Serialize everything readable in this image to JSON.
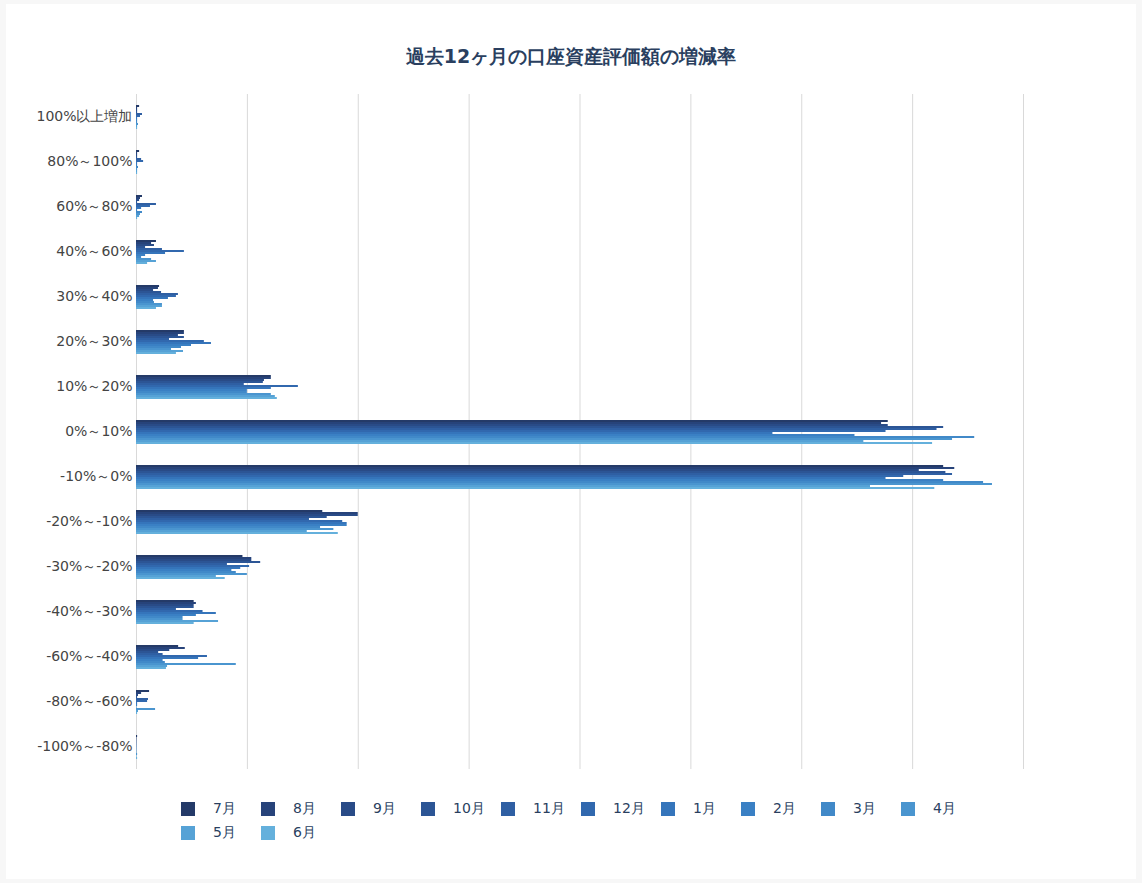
{
  "chart_data": {
    "type": "bar",
    "orientation": "horizontal",
    "title": "過去12ヶ月の口座資産評価額の増減率",
    "categories": [
      "100%以上増加",
      "80%～100%",
      "60%～80%",
      "40%～60%",
      "30%～40%",
      "20%～30%",
      "10%～20%",
      "0%～10%",
      "-10%～0%",
      "-20%～-10%",
      "-30%～-20%",
      "-40%～-30%",
      "-60%～-40%",
      "-80%～-60%",
      "-100%～-80%"
    ],
    "series": [
      {
        "name": "7月",
        "color": "#243a68",
        "values": [
          0.14,
          0.14,
          0.27,
          0.9,
          1.04,
          2.16,
          6.08,
          33.9,
          36.4,
          8.4,
          4.8,
          2.6,
          1.9,
          0.59,
          0.05
        ]
      },
      {
        "name": "8月",
        "color": "#27437a",
        "values": [
          0.05,
          0.05,
          0.18,
          0.68,
          0.99,
          2.16,
          6.08,
          33.6,
          36.9,
          10.0,
          5.2,
          2.7,
          2.2,
          0.23,
          0.02
        ]
      },
      {
        "name": "9月",
        "color": "#294b87",
        "values": [
          0.05,
          0.05,
          0.14,
          0.81,
          0.77,
          1.89,
          5.77,
          33.9,
          35.3,
          10.0,
          5.2,
          2.6,
          1.5,
          0.09,
          0.02
        ]
      },
      {
        "name": "10月",
        "color": "#2c5595",
        "values": [
          0.05,
          0.05,
          0.05,
          0.41,
          1.13,
          2.16,
          5.72,
          36.4,
          36.5,
          8.6,
          5.6,
          2.6,
          1.0,
          0.05,
          0.02
        ]
      },
      {
        "name": "11月",
        "color": "#2f5fa3",
        "values": [
          0.27,
          0.23,
          0.9,
          1.17,
          1.89,
          1.49,
          4.86,
          36.1,
          36.8,
          7.8,
          4.1,
          1.8,
          1.2,
          0.54,
          0.02
        ]
      },
      {
        "name": "12月",
        "color": "#3168ae",
        "values": [
          0.18,
          0.32,
          0.63,
          2.16,
          1.8,
          3.06,
          7.3,
          33.8,
          34.6,
          9.3,
          5.1,
          3.0,
          3.2,
          0.5,
          0.02
        ]
      },
      {
        "name": "1月",
        "color": "#3575bb",
        "values": [
          0.05,
          0.05,
          0.23,
          1.31,
          1.44,
          3.38,
          6.08,
          28.7,
          33.8,
          9.5,
          4.7,
          3.6,
          2.8,
          0.05,
          0.02
        ]
      },
      {
        "name": "2月",
        "color": "#3a80c4",
        "values": [
          0.05,
          0.05,
          0.05,
          0.41,
          0.77,
          2.48,
          5.0,
          32.4,
          36.4,
          9.5,
          4.3,
          2.7,
          1.2,
          0.05,
          0.02
        ]
      },
      {
        "name": "3月",
        "color": "#4189c8",
        "values": [
          0.05,
          0.09,
          0.27,
          0.23,
          0.81,
          2.03,
          5.0,
          37.8,
          38.2,
          8.3,
          4.5,
          2.1,
          1.3,
          0.02,
          0.02
        ]
      },
      {
        "name": "4月",
        "color": "#4a95cf",
        "values": [
          0.09,
          0.05,
          0.18,
          0.68,
          1.17,
          1.58,
          6.08,
          36.8,
          38.6,
          8.9,
          5.0,
          2.1,
          4.5,
          0.86,
          0.05
        ]
      },
      {
        "name": "5月",
        "color": "#56a2d6",
        "values": [
          0.05,
          0.05,
          0.14,
          0.9,
          1.17,
          2.12,
          6.26,
          32.8,
          33.1,
          7.7,
          3.6,
          3.7,
          1.4,
          0.09,
          0.02
        ]
      },
      {
        "name": "6月",
        "color": "#64b0dc",
        "values": [
          0.05,
          0.05,
          0.05,
          0.5,
          0.9,
          1.8,
          6.35,
          35.9,
          36.0,
          9.1,
          4.0,
          2.6,
          1.35,
          0.05,
          0.05
        ]
      }
    ],
    "xlim": [
      0,
      40
    ],
    "xticks": [
      0,
      5,
      10,
      15,
      20,
      25,
      30,
      35,
      40
    ],
    "grid": true,
    "tick_labels": "y",
    "legend": "bottom"
  }
}
